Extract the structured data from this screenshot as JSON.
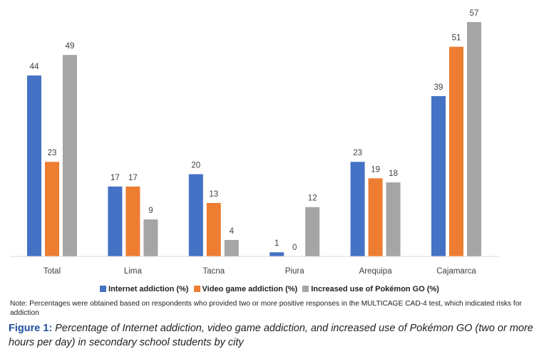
{
  "chart_data": {
    "type": "bar",
    "categories": [
      "Total",
      "Lima",
      "Tacna",
      "Piura",
      "Arequipa",
      "Cajamarca"
    ],
    "series": [
      {
        "name": "Internet addiction (%)",
        "color": "#4472c4",
        "values": [
          44,
          17,
          20,
          1,
          23,
          39
        ]
      },
      {
        "name": "Video game addiction (%)",
        "color": "#ed7d31",
        "values": [
          23,
          17,
          13,
          0,
          19,
          51
        ]
      },
      {
        "name": "Increased use of Pokémon GO (%)",
        "color": "#a5a5a5",
        "values": [
          49,
          9,
          4,
          12,
          18,
          57
        ]
      }
    ],
    "ylim": [
      0,
      57
    ],
    "grid": false,
    "legend_position": "bottom"
  },
  "note": "Note: Percentages were obtained based on respondents who provided two or more positive responses in the MULTICAGE CAD-4 test, which indicated risks for addiction",
  "caption": {
    "label": "Figure 1:",
    "text": "Percentage of Internet addiction, video game addiction, and increased use of Pokémon GO (two or more hours per day) in secondary school students by city"
  }
}
